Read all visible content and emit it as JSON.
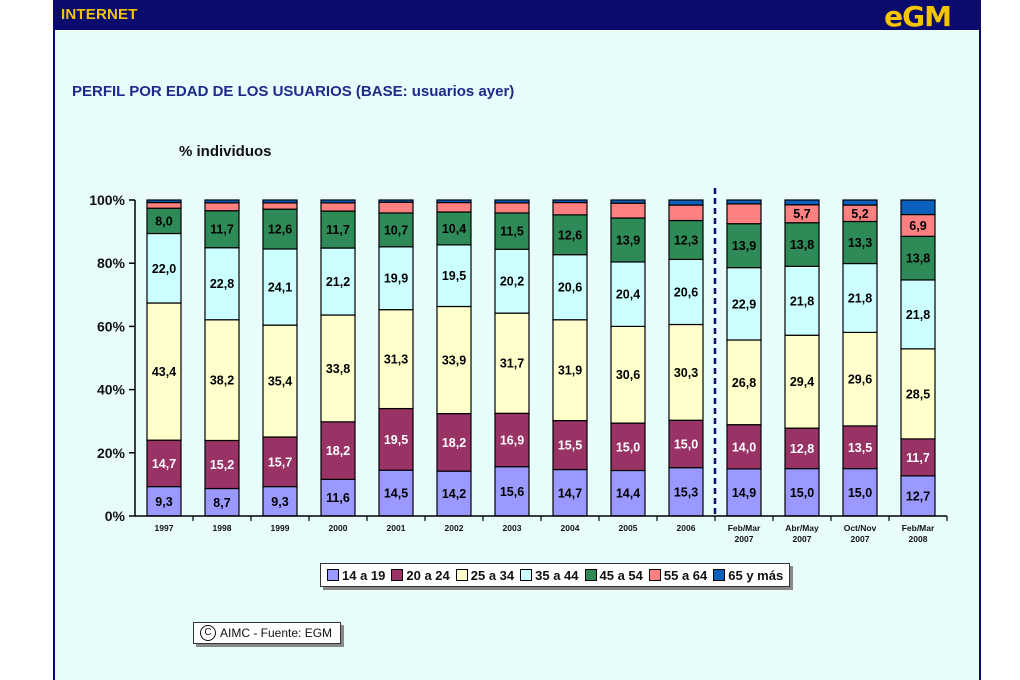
{
  "header": {
    "section": "INTERNET",
    "brand": "eGM"
  },
  "title": "PERFIL POR EDAD DE LOS USUARIOS (BASE: usuarios ayer)",
  "y_unit_label": "% individuos",
  "source": {
    "icon": "copyright-icon",
    "icon_glyph": "C",
    "text": "AIMC - Fuente: EGM"
  },
  "chart_data": {
    "type": "bar",
    "stacked": true,
    "title": "PERFIL POR EDAD DE LOS USUARIOS (BASE: usuarios ayer)",
    "ylabel": "% individuos",
    "ylim": [
      0,
      100
    ],
    "yticks": [
      "0%",
      "20%",
      "40%",
      "60%",
      "80%",
      "100%"
    ],
    "categories": [
      "1997",
      "1998",
      "1999",
      "2000",
      "2001",
      "2002",
      "2003",
      "2004",
      "2005",
      "2006",
      "Feb/Mar 2007",
      "Abr/May 2007",
      "Oct/Nov 2007",
      "Feb/Mar 2008"
    ],
    "divider_after_index": 9,
    "legend_position": "bottom",
    "series": [
      {
        "name": "14 a 19",
        "color": "#9999ff",
        "text_color": "#000000",
        "values": [
          9.3,
          8.7,
          9.3,
          11.6,
          14.5,
          14.2,
          15.6,
          14.7,
          14.4,
          15.3,
          14.9,
          15.0,
          15.0,
          12.7
        ],
        "labels": [
          "9,3",
          "8,7",
          "9,3",
          "11,6",
          "14,5",
          "14,2",
          "15,6",
          "14,7",
          "14,4",
          "15,3",
          "14,9",
          "15,0",
          "15,0",
          "12,7"
        ]
      },
      {
        "name": "20 a 24",
        "color": "#993366",
        "text_color": "#ffffff",
        "values": [
          14.7,
          15.2,
          15.7,
          18.2,
          19.5,
          18.2,
          16.9,
          15.5,
          15.0,
          15.0,
          14.0,
          12.8,
          13.5,
          11.7
        ],
        "labels": [
          "14,7",
          "15,2",
          "15,7",
          "18,2",
          "19,5",
          "18,2",
          "16,9",
          "15,5",
          "15,0",
          "15,0",
          "14,0",
          "12,8",
          "13,5",
          "11,7"
        ]
      },
      {
        "name": "25 a 34",
        "color": "#ffffcc",
        "text_color": "#000000",
        "values": [
          43.4,
          38.2,
          35.4,
          33.8,
          31.3,
          33.9,
          31.7,
          31.9,
          30.6,
          30.3,
          26.8,
          29.4,
          29.6,
          28.5
        ],
        "labels": [
          "43,4",
          "38,2",
          "35,4",
          "33,8",
          "31,3",
          "33,9",
          "31,7",
          "31,9",
          "30,6",
          "30,3",
          "26,8",
          "29,4",
          "29,6",
          "28,5"
        ]
      },
      {
        "name": "35 a 44",
        "color": "#ccffff",
        "text_color": "#000000",
        "values": [
          22.0,
          22.8,
          24.1,
          21.2,
          19.9,
          19.5,
          20.2,
          20.6,
          20.4,
          20.6,
          22.9,
          21.8,
          21.8,
          21.8
        ],
        "labels": [
          "22,0",
          "22,8",
          "24,1",
          "21,2",
          "19,9",
          "19,5",
          "20,2",
          "20,6",
          "20,4",
          "20,6",
          "22,9",
          "21,8",
          "21,8",
          "21,8"
        ]
      },
      {
        "name": "45 a 54",
        "color": "#2e8b57",
        "text_color": "#000000",
        "values": [
          8.0,
          11.7,
          12.6,
          11.7,
          10.7,
          10.4,
          11.5,
          12.6,
          13.9,
          12.3,
          13.9,
          13.8,
          13.3,
          13.8
        ],
        "labels": [
          "8,0",
          "11,7",
          "12,6",
          "11,7",
          "10,7",
          "10,4",
          "11,5",
          "12,6",
          "13,9",
          "12,3",
          "13,9",
          "13,8",
          "13,3",
          "13,8"
        ]
      },
      {
        "name": "55 a 64",
        "color": "#ff8080",
        "text_color": "#000000",
        "values": [
          1.8,
          2.5,
          2.0,
          2.6,
          3.4,
          3.0,
          3.2,
          3.9,
          4.7,
          4.9,
          6.3,
          5.7,
          5.2,
          6.9
        ],
        "labels": [
          "",
          "",
          "",
          "",
          "",
          "",
          "",
          "",
          "",
          "",
          "",
          "5,7",
          "5,2",
          "6,9"
        ]
      },
      {
        "name": "65 y más",
        "color": "#0b5fbd",
        "text_color": "#ffffff",
        "values": [
          0.8,
          0.9,
          0.9,
          0.9,
          0.7,
          0.8,
          0.9,
          0.8,
          1.0,
          1.6,
          1.2,
          1.5,
          1.6,
          4.6
        ],
        "labels": [
          "",
          "",
          "",
          "",
          "",
          "",
          "",
          "",
          "",
          "",
          "",
          "",
          "",
          ""
        ]
      }
    ]
  }
}
